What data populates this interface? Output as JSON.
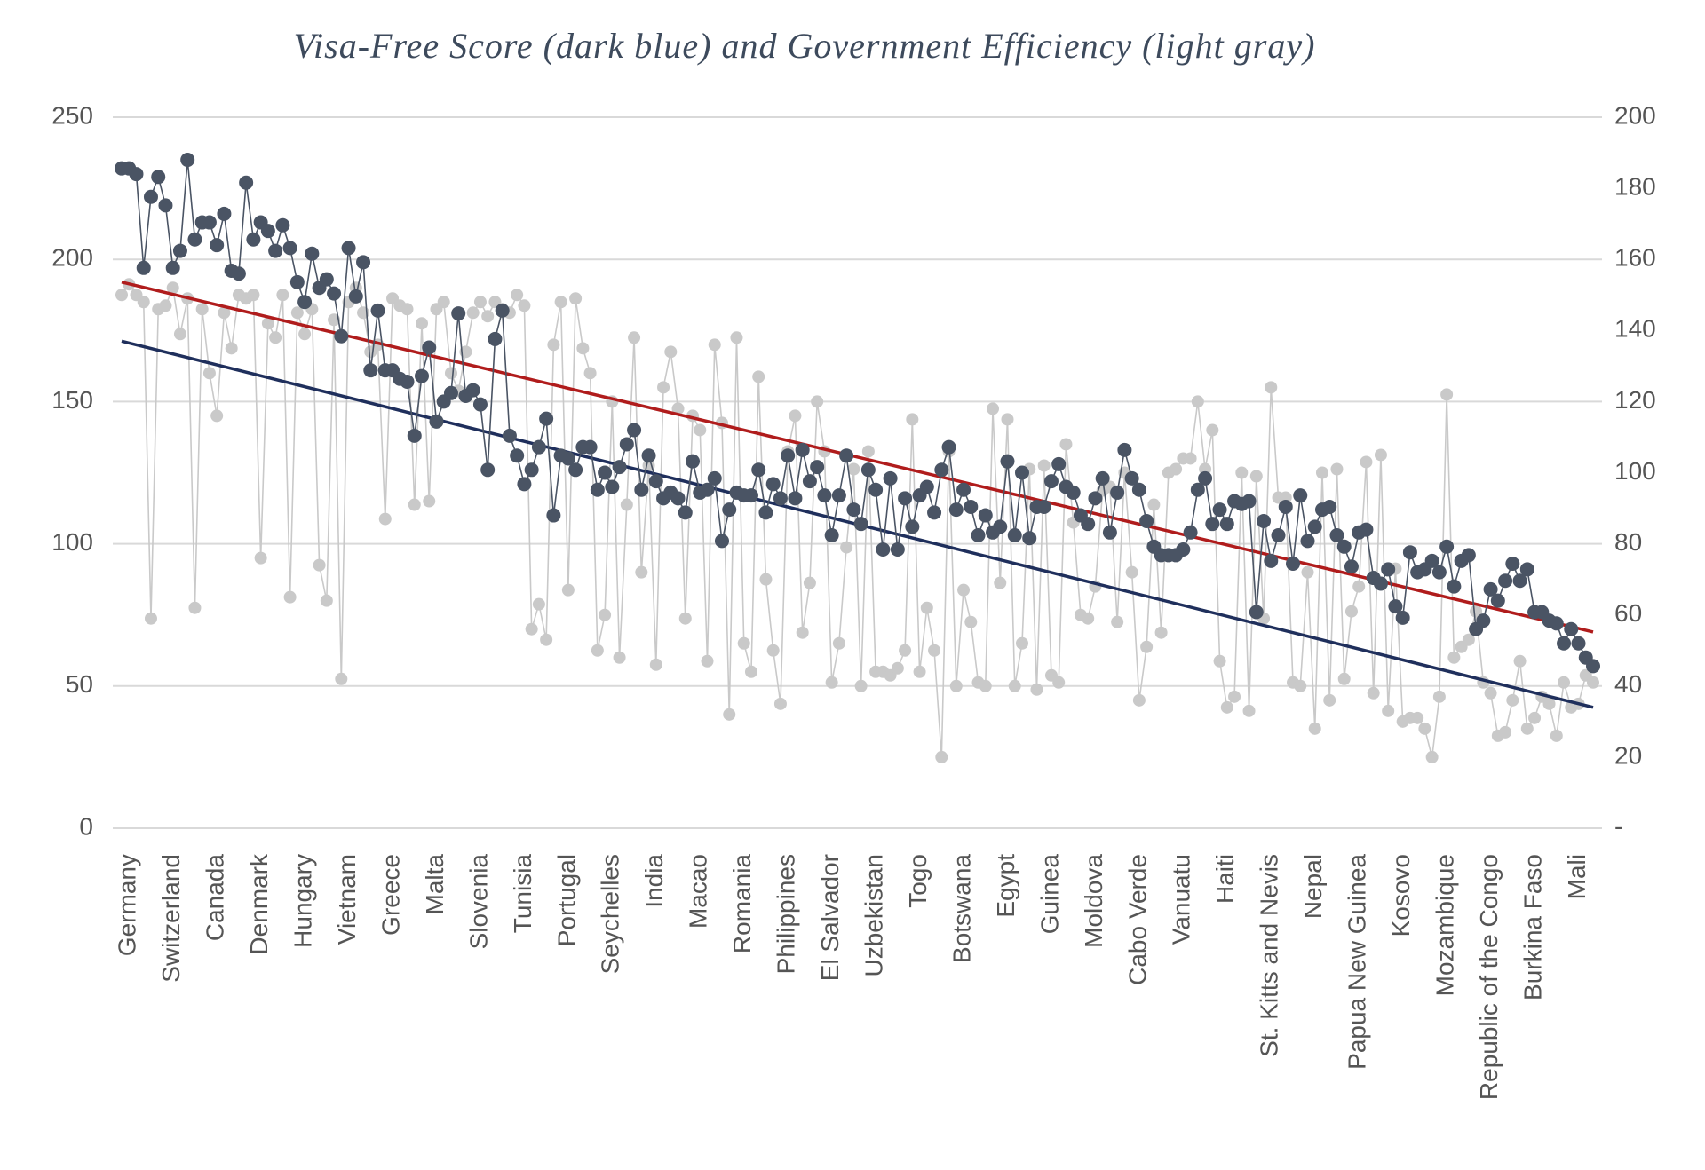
{
  "chart_data": {
    "type": "line",
    "title": "Visa-Free Score (dark blue) and Government Efficiency (light gray)",
    "categories": [
      null,
      "Germany",
      null,
      null,
      null,
      null,
      null,
      "Switzerland",
      null,
      null,
      null,
      null,
      null,
      "Canada",
      null,
      null,
      null,
      null,
      null,
      "Denmark",
      null,
      null,
      null,
      null,
      null,
      "Hungary",
      null,
      null,
      null,
      null,
      null,
      "Vietnam",
      null,
      null,
      null,
      null,
      null,
      "Greece",
      null,
      null,
      null,
      null,
      null,
      "Malta",
      null,
      null,
      null,
      null,
      null,
      "Slovenia",
      null,
      null,
      null,
      null,
      null,
      "Tunisia",
      null,
      null,
      null,
      null,
      null,
      "Portugal",
      null,
      null,
      null,
      null,
      null,
      "Seychelles",
      null,
      null,
      null,
      null,
      null,
      "India",
      null,
      null,
      null,
      null,
      null,
      "Macao",
      null,
      null,
      null,
      null,
      null,
      "Romania",
      null,
      null,
      null,
      null,
      null,
      "Philippines",
      null,
      null,
      null,
      null,
      null,
      "El Salvador",
      null,
      null,
      null,
      null,
      null,
      "Uzbekistan",
      null,
      null,
      null,
      null,
      null,
      "Togo",
      null,
      null,
      null,
      null,
      null,
      "Botswana",
      null,
      null,
      null,
      null,
      null,
      "Egypt",
      null,
      null,
      null,
      null,
      null,
      "Guinea",
      null,
      null,
      null,
      null,
      null,
      "Moldova",
      null,
      null,
      null,
      null,
      null,
      "Cabo Verde",
      null,
      null,
      null,
      null,
      null,
      "Vanuatu",
      null,
      null,
      null,
      null,
      null,
      "Haiti",
      null,
      null,
      null,
      null,
      null,
      "St. Kitts and Nevis",
      null,
      null,
      null,
      null,
      null,
      "Nepal",
      null,
      null,
      null,
      null,
      null,
      "Papua New Guinea",
      null,
      null,
      null,
      null,
      null,
      "Kosovo",
      null,
      null,
      null,
      null,
      null,
      "Mozambique",
      null,
      null,
      null,
      null,
      null,
      "Republic of the Congo",
      null,
      null,
      null,
      null,
      null,
      "Burkina Faso",
      null,
      null,
      null,
      null,
      null,
      "Mali",
      null,
      null
    ],
    "series": [
      {
        "color": "#c9c9c9",
        "axis": "y2",
        "values": [
          150,
          153,
          150,
          148,
          59,
          146,
          147,
          152,
          139,
          149,
          62,
          146,
          128,
          116,
          145,
          135,
          150,
          149,
          150,
          76,
          142,
          138,
          150,
          65,
          145,
          139,
          146,
          74,
          64,
          143,
          42,
          148,
          152,
          145,
          134,
          136,
          87,
          149,
          147,
          146,
          91,
          142,
          92,
          146,
          148,
          128,
          123,
          134,
          145,
          148,
          144,
          148,
          146,
          145,
          150,
          147,
          56,
          63,
          53,
          136,
          148,
          67,
          149,
          135,
          128,
          50,
          60,
          120,
          48,
          91,
          138,
          72,
          102,
          46,
          124,
          134,
          118,
          59,
          116,
          112,
          47,
          136,
          114,
          32,
          138,
          52,
          44,
          127,
          70,
          50,
          35,
          106,
          116,
          55,
          69,
          120,
          106,
          41,
          52,
          79,
          101,
          40,
          106,
          44,
          44,
          43,
          45,
          50,
          115,
          44,
          62,
          50,
          20,
          106,
          40,
          67,
          58,
          41,
          40,
          118,
          69,
          115,
          40,
          52,
          101,
          39,
          102,
          43,
          41,
          108,
          86,
          60,
          59,
          68,
          95,
          96,
          58,
          100,
          72,
          36,
          51,
          91,
          55,
          100,
          101,
          104,
          104,
          120,
          101,
          112,
          47,
          34,
          37,
          100,
          33,
          99,
          59,
          124,
          93,
          93,
          41,
          40,
          72,
          28,
          100,
          36,
          101,
          42,
          61,
          68,
          103,
          38,
          105,
          33,
          73,
          30,
          31,
          31,
          28,
          20,
          37,
          122,
          48,
          51,
          53,
          61,
          41,
          38,
          26,
          27,
          36,
          47,
          28,
          31,
          37,
          35,
          26,
          41,
          34,
          35,
          43,
          41
        ]
      },
      {
        "color": "#4a5464",
        "axis": "y",
        "values": [
          232,
          232,
          230,
          197,
          222,
          229,
          219,
          197,
          203,
          235,
          207,
          213,
          213,
          205,
          216,
          196,
          195,
          227,
          207,
          213,
          210,
          203,
          212,
          204,
          192,
          185,
          202,
          190,
          193,
          188,
          173,
          204,
          187,
          199,
          161,
          182,
          161,
          161,
          158,
          157,
          138,
          159,
          169,
          143,
          150,
          153,
          181,
          152,
          154,
          149,
          126,
          172,
          182,
          138,
          131,
          121,
          126,
          134,
          144,
          110,
          131,
          130,
          126,
          134,
          134,
          119,
          125,
          120,
          127,
          135,
          140,
          119,
          131,
          122,
          116,
          118,
          116,
          111,
          129,
          118,
          119,
          123,
          101,
          112,
          118,
          117,
          117,
          126,
          111,
          121,
          116,
          131,
          116,
          133,
          122,
          127,
          117,
          103,
          117,
          131,
          112,
          107,
          126,
          119,
          98,
          123,
          98,
          116,
          106,
          117,
          120,
          111,
          126,
          134,
          112,
          119,
          113,
          103,
          110,
          104,
          106,
          129,
          103,
          125,
          102,
          113,
          113,
          122,
          128,
          120,
          118,
          110,
          107,
          116,
          123,
          104,
          118,
          133,
          123,
          119,
          108,
          99,
          96,
          96,
          96,
          98,
          104,
          119,
          123,
          107,
          112,
          107,
          115,
          114,
          115,
          76,
          108,
          94,
          103,
          113,
          93,
          117,
          101,
          106,
          112,
          113,
          103,
          99,
          92,
          104,
          105,
          88,
          86,
          91,
          78,
          74,
          97,
          90,
          91,
          94,
          90,
          99,
          85,
          94,
          96,
          70,
          73,
          84,
          80,
          87,
          93,
          87,
          91,
          76,
          76,
          73,
          72,
          65,
          70,
          65,
          60,
          57
        ]
      }
    ],
    "trendlines": [
      {
        "color": "#1f2f5c",
        "axis": "y2",
        "values": [
          137,
          34
        ]
      },
      {
        "color": "#b01c1c",
        "axis": "y",
        "values": [
          192,
          69
        ]
      }
    ],
    "ylim": [
      0,
      250
    ],
    "yticks": [
      0,
      50,
      100,
      150,
      200,
      250
    ],
    "y2lim": [
      0,
      200
    ],
    "y2ticks": [
      {
        "value": 0,
        "label": "-"
      },
      20,
      40,
      60,
      80,
      100,
      120,
      140,
      160,
      180,
      200
    ],
    "grid": true
  }
}
